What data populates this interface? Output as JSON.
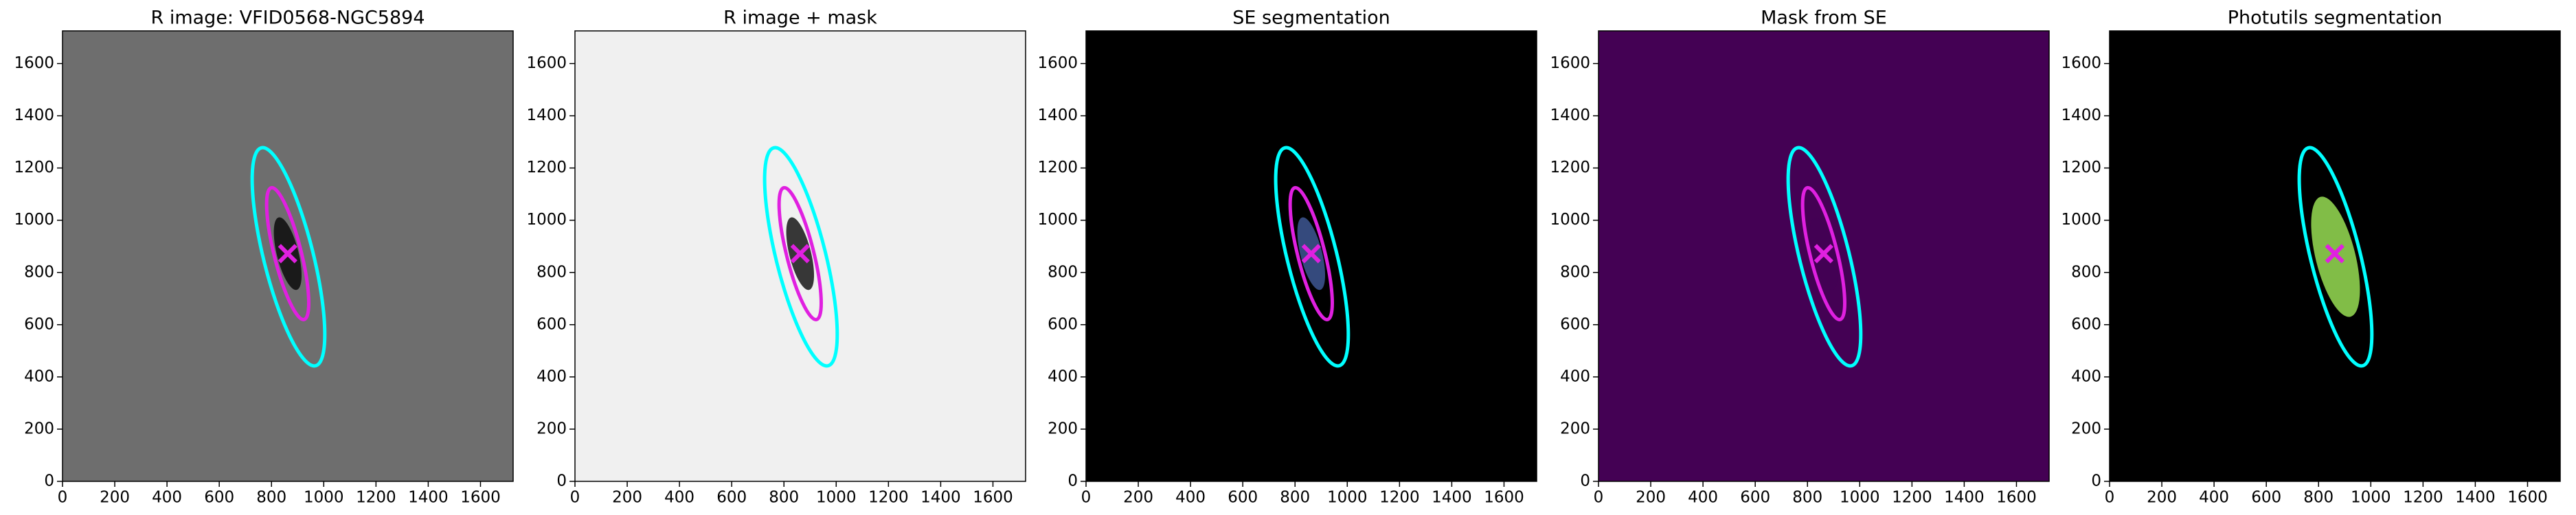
{
  "chart_data": [
    {
      "type": "image",
      "title": "R image: VFID0568-NGC5894",
      "background": "#6e6e6e",
      "galaxy_color": "#111111",
      "xlim": [
        0,
        1725
      ],
      "ylim": [
        0,
        1725
      ],
      "xticks": [
        0,
        200,
        400,
        600,
        800,
        1000,
        1200,
        1400,
        1600
      ],
      "yticks": [
        0,
        200,
        400,
        600,
        800,
        1000,
        1200,
        1400,
        1600
      ],
      "ellipses": [
        {
          "color": "#00ffff",
          "x": 865,
          "y": 860,
          "a": 430,
          "b": 95,
          "angle": 104
        },
        {
          "color": "#e020e0",
          "x": 862,
          "y": 872,
          "a": 260,
          "b": 52,
          "angle": 104
        }
      ],
      "markers": [
        {
          "color": "#e020e0",
          "x": 862,
          "y": 872
        }
      ]
    },
    {
      "type": "image",
      "title": "R image + mask",
      "background": "#f0f0f0",
      "galaxy_color": "#222222",
      "xlim": [
        0,
        1725
      ],
      "ylim": [
        0,
        1725
      ],
      "xticks": [
        0,
        200,
        400,
        600,
        800,
        1000,
        1200,
        1400,
        1600
      ],
      "yticks": [
        0,
        200,
        400,
        600,
        800,
        1000,
        1200,
        1400,
        1600
      ],
      "ellipses": [
        {
          "color": "#00ffff",
          "x": 865,
          "y": 860,
          "a": 430,
          "b": 95,
          "angle": 104
        },
        {
          "color": "#e020e0",
          "x": 862,
          "y": 872,
          "a": 260,
          "b": 52,
          "angle": 104
        }
      ],
      "markers": [
        {
          "color": "#e020e0",
          "x": 862,
          "y": 872
        }
      ]
    },
    {
      "type": "image",
      "title": "SE segmentation",
      "background": "#000000",
      "galaxy_color": "#3b528b",
      "xlim": [
        0,
        1725
      ],
      "ylim": [
        0,
        1725
      ],
      "xticks": [
        0,
        200,
        400,
        600,
        800,
        1000,
        1200,
        1400,
        1600
      ],
      "yticks": [
        0,
        200,
        400,
        600,
        800,
        1000,
        1200,
        1400,
        1600
      ],
      "ellipses": [
        {
          "color": "#00ffff",
          "x": 865,
          "y": 860,
          "a": 430,
          "b": 95,
          "angle": 104
        },
        {
          "color": "#e020e0",
          "x": 862,
          "y": 872,
          "a": 260,
          "b": 52,
          "angle": 104
        }
      ],
      "markers": [
        {
          "color": "#e020e0",
          "x": 862,
          "y": 872
        }
      ]
    },
    {
      "type": "image",
      "title": "Mask from SE",
      "background": "#440154",
      "galaxy_color": "#440154",
      "xlim": [
        0,
        1725
      ],
      "ylim": [
        0,
        1725
      ],
      "xticks": [
        0,
        200,
        400,
        600,
        800,
        1000,
        1200,
        1400,
        1600
      ],
      "yticks": [
        0,
        200,
        400,
        600,
        800,
        1000,
        1200,
        1400,
        1600
      ],
      "ellipses": [
        {
          "color": "#00ffff",
          "x": 865,
          "y": 860,
          "a": 430,
          "b": 95,
          "angle": 104
        },
        {
          "color": "#e020e0",
          "x": 862,
          "y": 872,
          "a": 260,
          "b": 52,
          "angle": 104
        }
      ],
      "markers": [
        {
          "color": "#e020e0",
          "x": 862,
          "y": 872
        }
      ]
    },
    {
      "type": "image",
      "title": "Photutils segmentation",
      "background": "#000000",
      "galaxy_color": "#8fd14f",
      "xlim": [
        0,
        1725
      ],
      "ylim": [
        0,
        1725
      ],
      "xticks": [
        0,
        200,
        400,
        600,
        800,
        1000,
        1200,
        1400,
        1600
      ],
      "yticks": [
        0,
        200,
        400,
        600,
        800,
        1000,
        1200,
        1400,
        1600
      ],
      "ellipses": [
        {
          "color": "#00ffff",
          "x": 865,
          "y": 860,
          "a": 430,
          "b": 95,
          "angle": 104
        }
      ],
      "markers": [
        {
          "color": "#e020e0",
          "x": 862,
          "y": 872
        }
      ]
    }
  ]
}
